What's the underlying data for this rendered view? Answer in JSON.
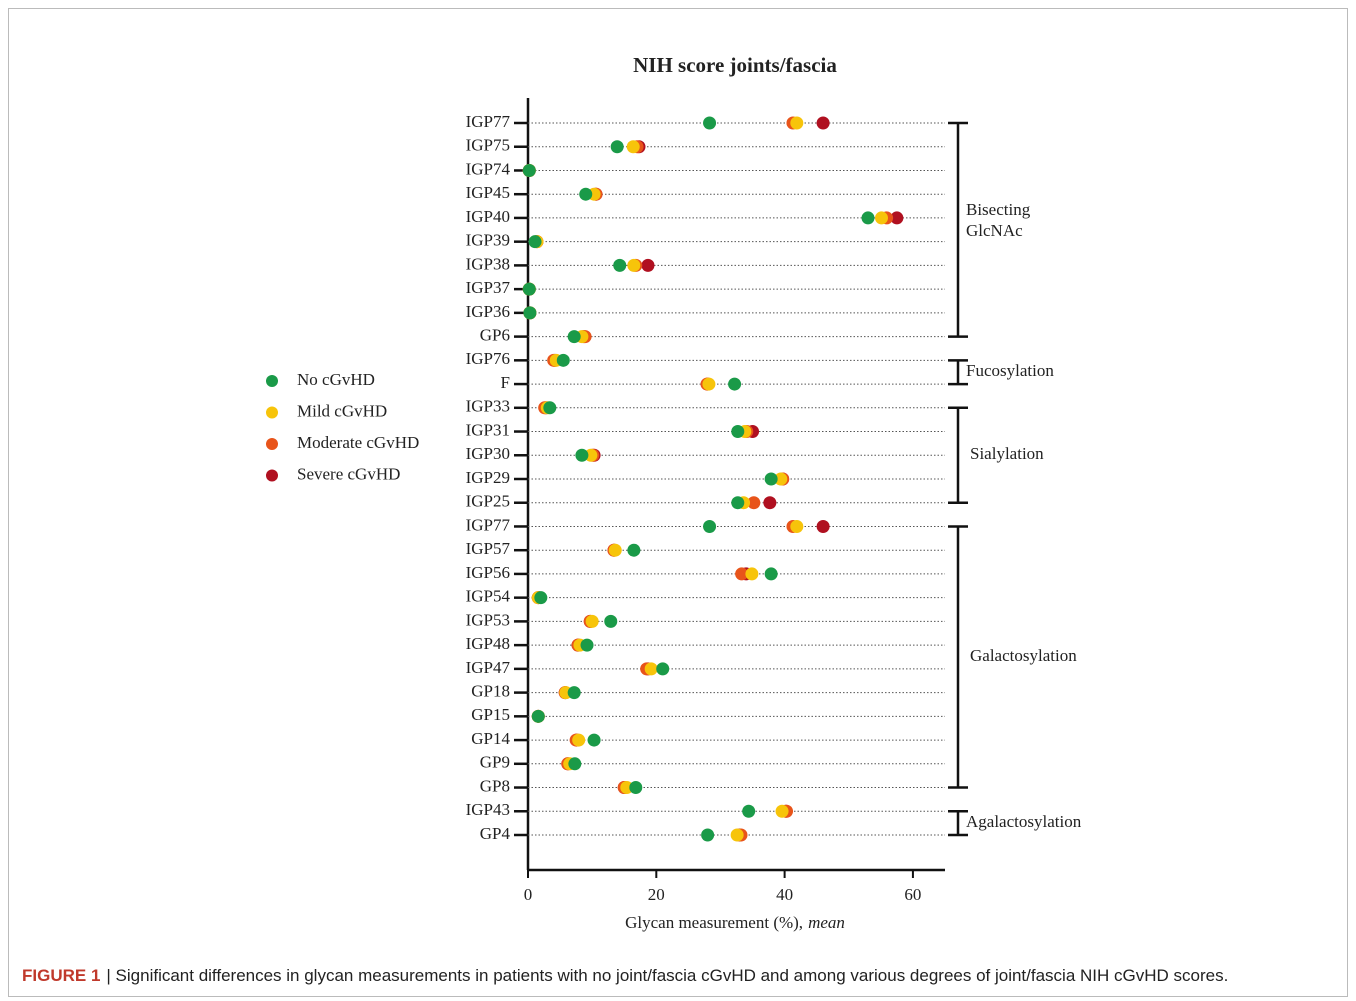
{
  "chart_data": {
    "type": "dot",
    "title": "NIH score joints/fascia",
    "x_label": "Glycan measurement (%),",
    "x_label_emphasis": "mean",
    "categories": [
      "IGP77",
      "IGP75",
      "IGP74",
      "IGP45",
      "IGP40",
      "IGP39",
      "IGP38",
      "IGP37",
      "IGP36",
      "GP6",
      "IGP76",
      "F",
      "IGP33",
      "IGP31",
      "IGP30",
      "IGP29",
      "IGP25",
      "IGP77",
      "IGP57",
      "IGP56",
      "IGP54",
      "IGP53",
      "IGP48",
      "IGP47",
      "GP18",
      "GP15",
      "GP14",
      "GP9",
      "GP8",
      "IGP43",
      "GP4"
    ],
    "series": [
      {
        "name": "No cGvHD",
        "color": "#1a9a48",
        "values": [
          28.3,
          13.9,
          0.2,
          9.0,
          53.0,
          1.1,
          14.3,
          0.2,
          0.3,
          7.2,
          5.5,
          32.2,
          3.4,
          32.7,
          8.4,
          37.9,
          32.7,
          28.3,
          16.5,
          37.9,
          2.0,
          12.9,
          9.2,
          21.0,
          7.2,
          1.6,
          10.3,
          7.3,
          16.8,
          34.4,
          28.0
        ]
      },
      {
        "name": "Mild cGvHD",
        "color": "#f7c40a",
        "values": [
          41.9,
          16.4,
          0.2,
          10.3,
          55.1,
          1.4,
          16.5,
          0.2,
          0.3,
          8.4,
          4.4,
          28.2,
          3.0,
          33.8,
          9.8,
          39.4,
          33.6,
          41.9,
          13.6,
          34.9,
          1.6,
          10.0,
          8.1,
          19.2,
          5.9,
          1.6,
          7.9,
          6.5,
          15.4,
          39.6,
          32.6
        ]
      },
      {
        "name": "Moderate cGvHD",
        "color": "#e8541a",
        "values": [
          41.3,
          17.0,
          0.2,
          10.6,
          55.9,
          1.4,
          16.8,
          0.2,
          0.3,
          8.9,
          4.0,
          27.9,
          2.6,
          34.1,
          10.1,
          39.7,
          35.2,
          41.3,
          13.4,
          33.3,
          1.6,
          9.7,
          7.8,
          18.5,
          5.8,
          1.6,
          7.5,
          6.2,
          15.0,
          40.3,
          33.2
        ]
      },
      {
        "name": "Severe cGvHD",
        "color": "#b01020",
        "values": [
          46.0,
          17.3,
          0.2,
          10.6,
          57.5,
          1.4,
          18.7,
          0.2,
          0.3,
          8.7,
          4.2,
          28.0,
          2.8,
          35.0,
          10.3,
          39.7,
          37.7,
          46.0,
          13.4,
          34.0,
          1.6,
          9.7,
          7.8,
          18.7,
          5.8,
          1.6,
          7.6,
          6.2,
          15.0,
          40.2,
          33.0
        ]
      }
    ],
    "groups": [
      {
        "label": [
          "Bisecting",
          "GlcNAc"
        ],
        "count": 10
      },
      {
        "label": [
          "Fucosylation"
        ],
        "count": 2
      },
      {
        "label": [
          "Sialylation"
        ],
        "count": 5
      },
      {
        "label": [
          "Galactosylation"
        ],
        "count": 12
      },
      {
        "label": [
          "Agalactosylation"
        ],
        "count": 2
      }
    ],
    "xlim": [
      0,
      65
    ],
    "xticks": [
      0,
      20,
      40,
      60
    ],
    "grid": true,
    "legend": "left"
  },
  "caption": {
    "label": "FIGURE 1",
    "text": "| Significant differences in glycan measurements in patients with no joint/fascia cGvHD and among various degrees of joint/fascia NIH cGvHD scores."
  }
}
